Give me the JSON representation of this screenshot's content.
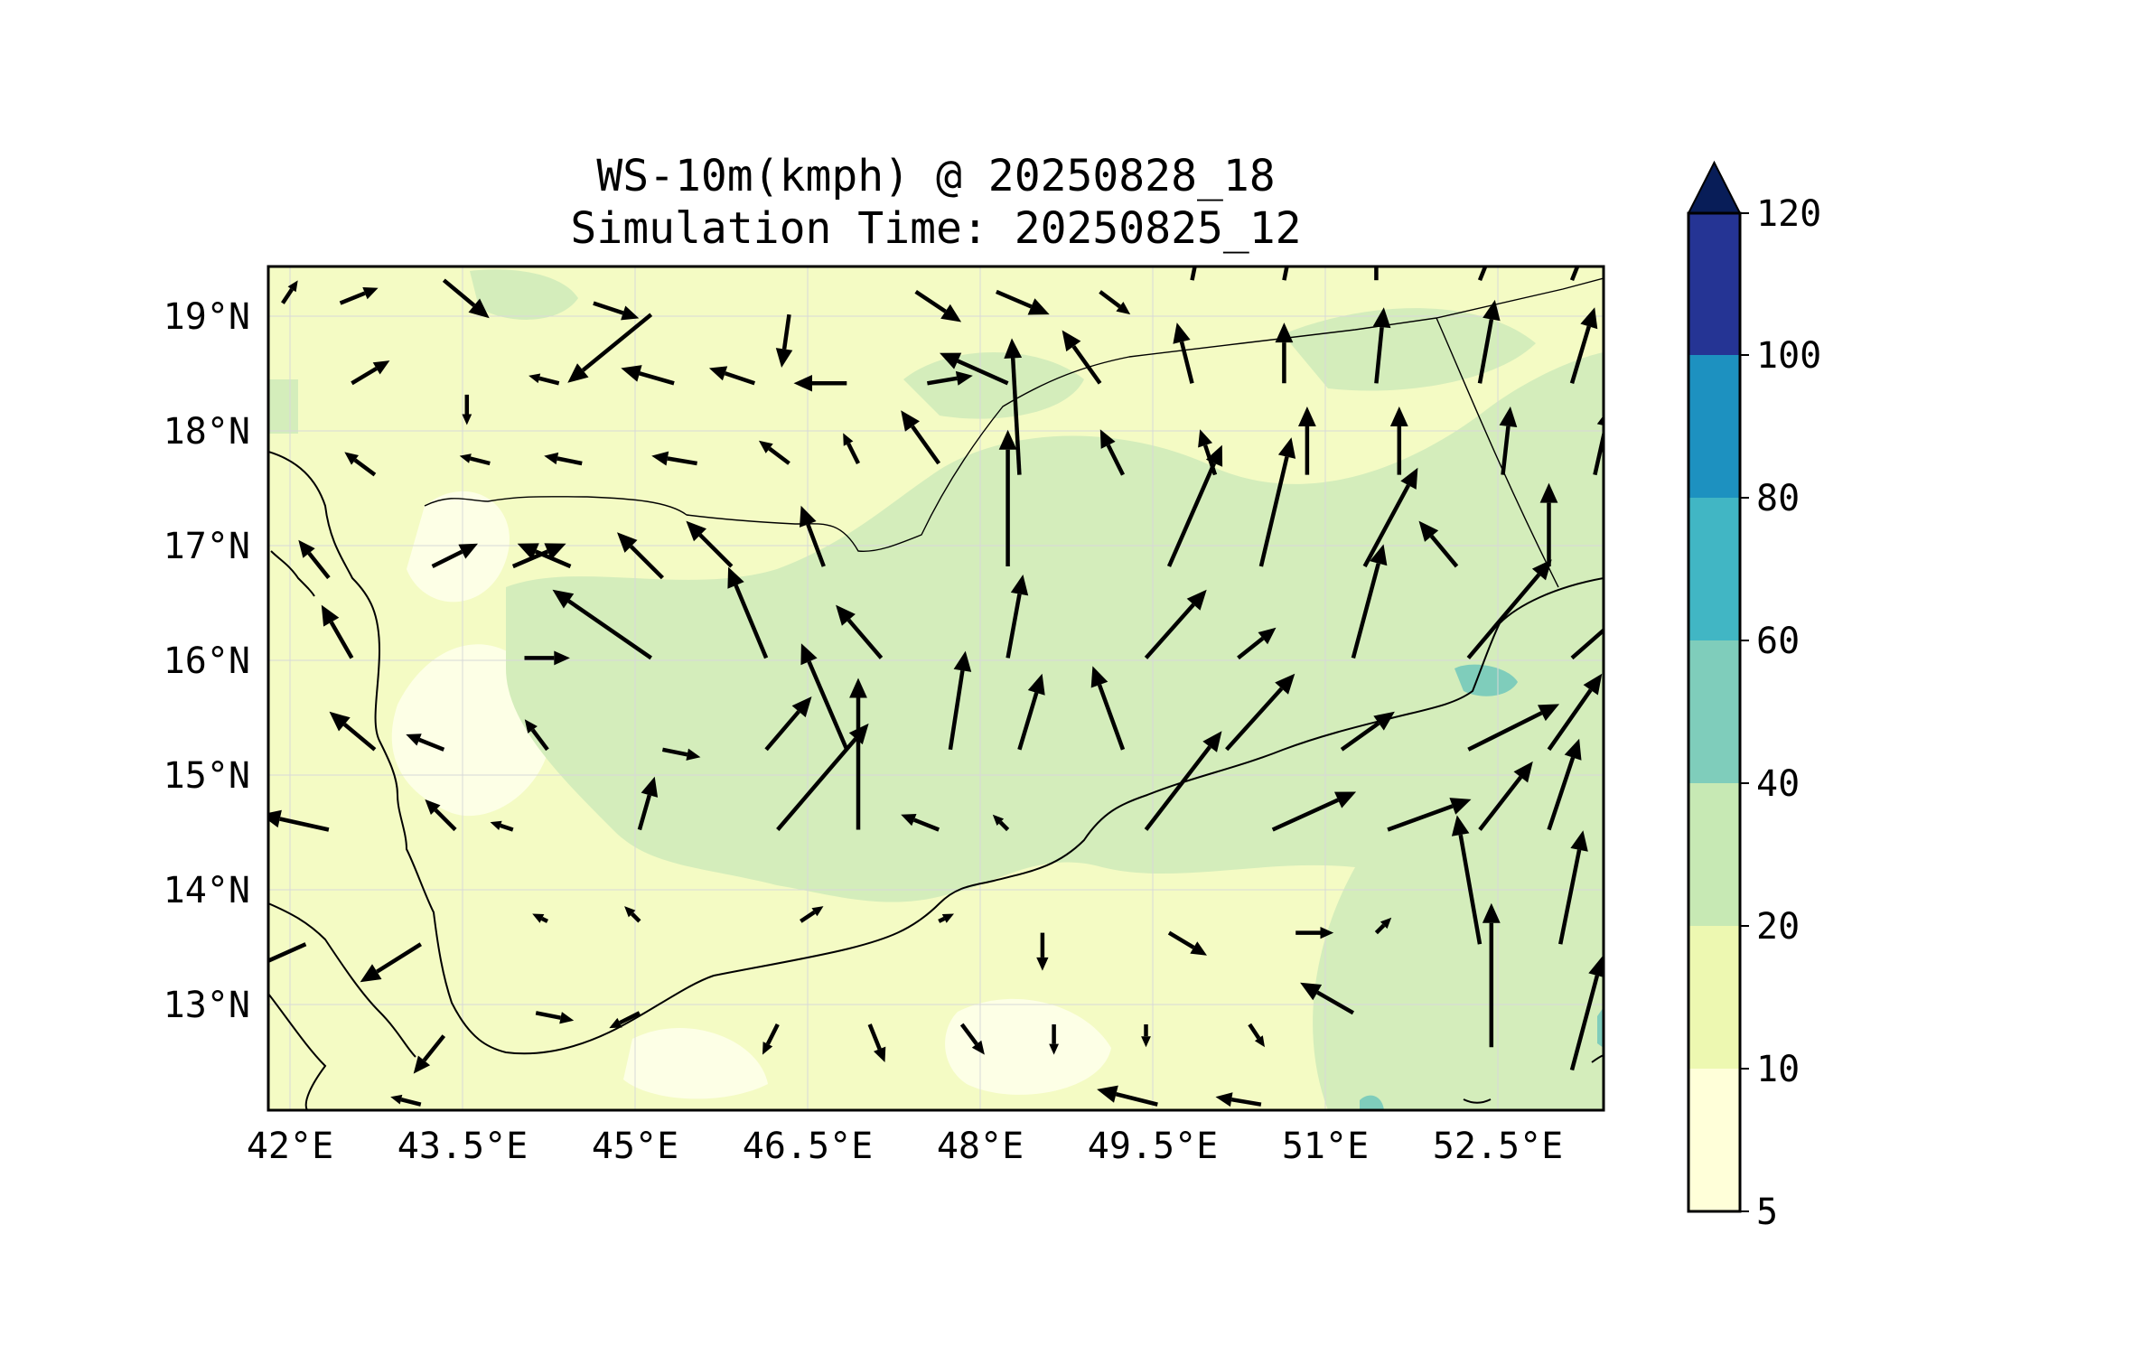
{
  "title_line1": "WS-10m(kmph) @ 20250828_18",
  "title_line2": "Simulation Time: 20250825_12",
  "lon_ticks": [
    "42°E",
    "43.5°E",
    "45°E",
    "46.5°E",
    "48°E",
    "49.5°E",
    "51°E",
    "52.5°E"
  ],
  "lat_ticks": [
    "19°N",
    "18°N",
    "17°N",
    "16°N",
    "15°N",
    "14°N",
    "13°N"
  ],
  "colorbar": {
    "levels": [
      "5",
      "10",
      "20",
      "40",
      "60",
      "80",
      "100",
      "120"
    ],
    "colors": [
      "#ffffd9",
      "#edf8b1",
      "#c7e9b4",
      "#7fcdbb",
      "#41b6c4",
      "#1d91c0",
      "#253494"
    ],
    "extend_color": "#081d58"
  },
  "map_colors": {
    "land_low": "#f4fbc4",
    "band_10_20": "#edf8b1",
    "band_20_40": "#d4edbb",
    "band_40_60": "#7fcdbb",
    "coast": "#000000"
  },
  "wind_vectors": [
    {
      "lon": 42.0,
      "lat": 19.1,
      "u": 4,
      "v": 6
    },
    {
      "lon": 42.5,
      "lat": 19.1,
      "u": 10,
      "v": 4
    },
    {
      "lon": 43.4,
      "lat": 19.3,
      "u": 12,
      "v": -10
    },
    {
      "lon": 44.7,
      "lat": 19.1,
      "u": 12,
      "v": -4
    },
    {
      "lon": 45.2,
      "lat": 19.0,
      "u": -22,
      "v": -18
    },
    {
      "lon": 46.4,
      "lat": 19.0,
      "u": -2,
      "v": -14
    },
    {
      "lon": 47.5,
      "lat": 19.2,
      "u": 12,
      "v": -8
    },
    {
      "lon": 48.2,
      "lat": 19.2,
      "u": 14,
      "v": -6
    },
    {
      "lon": 49.1,
      "lat": 19.2,
      "u": 8,
      "v": -6
    },
    {
      "lon": 49.9,
      "lat": 19.3,
      "u": 2,
      "v": 10
    },
    {
      "lon": 50.7,
      "lat": 19.3,
      "u": 2,
      "v": 10
    },
    {
      "lon": 51.5,
      "lat": 19.3,
      "u": 0,
      "v": 10
    },
    {
      "lon": 52.4,
      "lat": 19.3,
      "u": 4,
      "v": 10
    },
    {
      "lon": 53.2,
      "lat": 19.3,
      "u": 4,
      "v": 10
    },
    {
      "lon": 53.9,
      "lat": 19.3,
      "u": 4,
      "v": 10
    },
    {
      "lon": 42.6,
      "lat": 18.4,
      "u": 10,
      "v": 6
    },
    {
      "lon": 43.6,
      "lat": 18.3,
      "u": 0,
      "v": -8
    },
    {
      "lon": 44.4,
      "lat": 18.4,
      "u": -8,
      "v": 2
    },
    {
      "lon": 45.4,
      "lat": 18.4,
      "u": -14,
      "v": 4
    },
    {
      "lon": 46.1,
      "lat": 18.4,
      "u": -12,
      "v": 4
    },
    {
      "lon": 46.9,
      "lat": 18.4,
      "u": -14,
      "v": 0
    },
    {
      "lon": 47.6,
      "lat": 18.4,
      "u": 12,
      "v": 2
    },
    {
      "lon": 48.3,
      "lat": 18.4,
      "u": -18,
      "v": 8
    },
    {
      "lon": 49.1,
      "lat": 18.4,
      "u": -10,
      "v": 14
    },
    {
      "lon": 49.9,
      "lat": 18.4,
      "u": -4,
      "v": 16
    },
    {
      "lon": 50.7,
      "lat": 18.4,
      "u": 0,
      "v": 16
    },
    {
      "lon": 51.5,
      "lat": 18.4,
      "u": 2,
      "v": 20
    },
    {
      "lon": 52.4,
      "lat": 18.4,
      "u": 4,
      "v": 22
    },
    {
      "lon": 53.2,
      "lat": 18.4,
      "u": 6,
      "v": 20
    },
    {
      "lon": 53.9,
      "lat": 18.4,
      "u": 8,
      "v": 18
    },
    {
      "lon": 42.8,
      "lat": 17.6,
      "u": -8,
      "v": 6
    },
    {
      "lon": 43.8,
      "lat": 17.7,
      "u": -8,
      "v": 2
    },
    {
      "lon": 44.6,
      "lat": 17.7,
      "u": -10,
      "v": 2
    },
    {
      "lon": 45.6,
      "lat": 17.7,
      "u": -12,
      "v": 2
    },
    {
      "lon": 46.4,
      "lat": 17.7,
      "u": -8,
      "v": 6
    },
    {
      "lon": 47.0,
      "lat": 17.7,
      "u": -4,
      "v": 8
    },
    {
      "lon": 47.7,
      "lat": 17.7,
      "u": -10,
      "v": 14
    },
    {
      "lon": 48.4,
      "lat": 17.6,
      "u": -2,
      "v": 36
    },
    {
      "lon": 49.3,
      "lat": 17.6,
      "u": -6,
      "v": 12
    },
    {
      "lon": 50.1,
      "lat": 17.6,
      "u": -4,
      "v": 12
    },
    {
      "lon": 50.9,
      "lat": 17.6,
      "u": 0,
      "v": 18
    },
    {
      "lon": 51.7,
      "lat": 17.6,
      "u": 0,
      "v": 18
    },
    {
      "lon": 52.6,
      "lat": 17.6,
      "u": 2,
      "v": 18
    },
    {
      "lon": 53.4,
      "lat": 17.6,
      "u": 4,
      "v": 18
    },
    {
      "lon": 53.9,
      "lat": 17.5,
      "u": 8,
      "v": 16
    },
    {
      "lon": 42.4,
      "lat": 16.7,
      "u": -8,
      "v": 10
    },
    {
      "lon": 43.3,
      "lat": 16.8,
      "u": 12,
      "v": 6
    },
    {
      "lon": 44.0,
      "lat": 16.8,
      "u": 14,
      "v": 6
    },
    {
      "lon": 44.5,
      "lat": 16.8,
      "u": -14,
      "v": 6
    },
    {
      "lon": 45.3,
      "lat": 16.7,
      "u": -12,
      "v": 12
    },
    {
      "lon": 45.9,
      "lat": 16.8,
      "u": -12,
      "v": 12
    },
    {
      "lon": 46.7,
      "lat": 16.8,
      "u": -6,
      "v": 16
    },
    {
      "lon": 48.3,
      "lat": 16.8,
      "u": 0,
      "v": 36
    },
    {
      "lon": 49.7,
      "lat": 16.8,
      "u": 14,
      "v": 32
    },
    {
      "lon": 50.5,
      "lat": 16.8,
      "u": 8,
      "v": 34
    },
    {
      "lon": 51.4,
      "lat": 16.8,
      "u": 14,
      "v": 26
    },
    {
      "lon": 52.2,
      "lat": 16.8,
      "u": -10,
      "v": 12
    },
    {
      "lon": 53.0,
      "lat": 16.8,
      "u": 0,
      "v": 22
    },
    {
      "lon": 53.9,
      "lat": 16.8,
      "u": 8,
      "v": 16
    },
    {
      "lon": 42.6,
      "lat": 16.0,
      "u": -8,
      "v": 14
    },
    {
      "lon": 44.1,
      "lat": 16.0,
      "u": 12,
      "v": 0
    },
    {
      "lon": 45.2,
      "lat": 16.0,
      "u": -26,
      "v": 18
    },
    {
      "lon": 46.2,
      "lat": 16.0,
      "u": -10,
      "v": 24
    },
    {
      "lon": 47.2,
      "lat": 16.0,
      "u": -12,
      "v": 14
    },
    {
      "lon": 48.3,
      "lat": 16.0,
      "u": 4,
      "v": 22
    },
    {
      "lon": 49.5,
      "lat": 16.0,
      "u": 16,
      "v": 18
    },
    {
      "lon": 50.3,
      "lat": 16.0,
      "u": 10,
      "v": 8
    },
    {
      "lon": 51.3,
      "lat": 16.0,
      "u": 8,
      "v": 30
    },
    {
      "lon": 52.3,
      "lat": 16.0,
      "u": 22,
      "v": 26
    },
    {
      "lon": 53.2,
      "lat": 16.0,
      "u": 16,
      "v": 14
    },
    {
      "lon": 53.9,
      "lat": 16.0,
      "u": 0,
      "v": 6
    },
    {
      "lon": 42.8,
      "lat": 15.2,
      "u": -12,
      "v": 10
    },
    {
      "lon": 43.4,
      "lat": 15.2,
      "u": -10,
      "v": 4
    },
    {
      "lon": 44.3,
      "lat": 15.2,
      "u": -6,
      "v": 8
    },
    {
      "lon": 45.3,
      "lat": 15.2,
      "u": 10,
      "v": -2
    },
    {
      "lon": 46.2,
      "lat": 15.2,
      "u": 12,
      "v": 14
    },
    {
      "lon": 46.9,
      "lat": 15.2,
      "u": -12,
      "v": 28
    },
    {
      "lon": 47.8,
      "lat": 15.2,
      "u": 4,
      "v": 26
    },
    {
      "lon": 48.4,
      "lat": 15.2,
      "u": 6,
      "v": 20
    },
    {
      "lon": 49.3,
      "lat": 15.2,
      "u": -8,
      "v": 22
    },
    {
      "lon": 50.2,
      "lat": 15.2,
      "u": 18,
      "v": 20
    },
    {
      "lon": 51.2,
      "lat": 15.2,
      "u": 14,
      "v": 10
    },
    {
      "lon": 52.3,
      "lat": 15.2,
      "u": 24,
      "v": 12
    },
    {
      "lon": 53.0,
      "lat": 15.2,
      "u": 14,
      "v": 20
    },
    {
      "lon": 53.9,
      "lat": 15.2,
      "u": 8,
      "v": 22
    },
    {
      "lon": 42.4,
      "lat": 14.5,
      "u": -18,
      "v": 4
    },
    {
      "lon": 43.5,
      "lat": 14.5,
      "u": -8,
      "v": 8
    },
    {
      "lon": 44.0,
      "lat": 14.5,
      "u": -6,
      "v": 2
    },
    {
      "lon": 45.1,
      "lat": 14.5,
      "u": 4,
      "v": 14
    },
    {
      "lon": 46.3,
      "lat": 14.5,
      "u": 24,
      "v": 28
    },
    {
      "lon": 47.0,
      "lat": 14.5,
      "u": 0,
      "v": 40
    },
    {
      "lon": 47.7,
      "lat": 14.5,
      "u": -10,
      "v": 4
    },
    {
      "lon": 48.3,
      "lat": 14.5,
      "u": -4,
      "v": 4
    },
    {
      "lon": 49.5,
      "lat": 14.5,
      "u": 20,
      "v": 26
    },
    {
      "lon": 50.6,
      "lat": 14.5,
      "u": 22,
      "v": 10
    },
    {
      "lon": 51.6,
      "lat": 14.5,
      "u": 22,
      "v": 8
    },
    {
      "lon": 52.4,
      "lat": 14.5,
      "u": 14,
      "v": 18
    },
    {
      "lon": 53.0,
      "lat": 14.5,
      "u": 8,
      "v": 24
    },
    {
      "lon": 53.9,
      "lat": 14.5,
      "u": 10,
      "v": 30
    },
    {
      "lon": 42.2,
      "lat": 13.5,
      "u": -18,
      "v": -8
    },
    {
      "lon": 43.2,
      "lat": 13.5,
      "u": -16,
      "v": -10
    },
    {
      "lon": 44.3,
      "lat": 13.7,
      "u": -4,
      "v": 2
    },
    {
      "lon": 45.1,
      "lat": 13.7,
      "u": -4,
      "v": 4
    },
    {
      "lon": 46.5,
      "lat": 13.7,
      "u": 6,
      "v": 4
    },
    {
      "lon": 47.7,
      "lat": 13.7,
      "u": 4,
      "v": 2
    },
    {
      "lon": 48.6,
      "lat": 13.6,
      "u": 0,
      "v": -10
    },
    {
      "lon": 49.7,
      "lat": 13.6,
      "u": 10,
      "v": -6
    },
    {
      "lon": 50.8,
      "lat": 13.6,
      "u": 10,
      "v": 0
    },
    {
      "lon": 51.5,
      "lat": 13.6,
      "u": 4,
      "v": 4
    },
    {
      "lon": 52.4,
      "lat": 13.5,
      "u": -6,
      "v": 34
    },
    {
      "lon": 53.1,
      "lat": 13.5,
      "u": 6,
      "v": 30
    },
    {
      "lon": 53.8,
      "lat": 13.5,
      "u": 6,
      "v": 30
    },
    {
      "lon": 43.4,
      "lat": 12.7,
      "u": -8,
      "v": -10
    },
    {
      "lon": 44.2,
      "lat": 12.9,
      "u": 10,
      "v": -2
    },
    {
      "lon": 45.1,
      "lat": 12.9,
      "u": -8,
      "v": -4
    },
    {
      "lon": 46.3,
      "lat": 12.8,
      "u": -4,
      "v": -8
    },
    {
      "lon": 47.1,
      "lat": 12.8,
      "u": 4,
      "v": -10
    },
    {
      "lon": 47.9,
      "lat": 12.8,
      "u": 6,
      "v": -8
    },
    {
      "lon": 48.7,
      "lat": 12.8,
      "u": 0,
      "v": -8
    },
    {
      "lon": 49.5,
      "lat": 12.8,
      "u": 0,
      "v": -6
    },
    {
      "lon": 50.4,
      "lat": 12.8,
      "u": 4,
      "v": -6
    },
    {
      "lon": 51.3,
      "lat": 12.9,
      "u": -14,
      "v": 8
    },
    {
      "lon": 52.5,
      "lat": 12.6,
      "u": 0,
      "v": 38
    },
    {
      "lon": 53.2,
      "lat": 12.4,
      "u": 8,
      "v": 30
    },
    {
      "lon": 53.9,
      "lat": 12.4,
      "u": 8,
      "v": 12
    },
    {
      "lon": 43.2,
      "lat": 12.1,
      "u": -8,
      "v": 2
    },
    {
      "lon": 49.6,
      "lat": 12.1,
      "u": -16,
      "v": 4
    },
    {
      "lon": 50.5,
      "lat": 12.1,
      "u": -12,
      "v": 2
    }
  ]
}
